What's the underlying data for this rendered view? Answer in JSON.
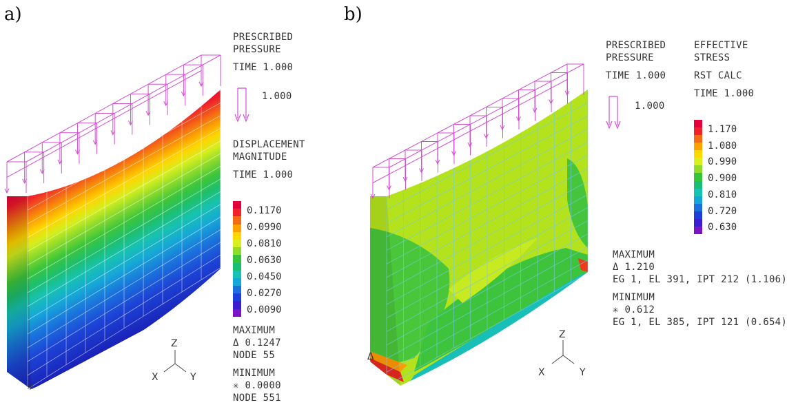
{
  "panel_a": {
    "label": "a)",
    "load": {
      "title_1": "PRESCRIBED",
      "title_2": "PRESSURE",
      "time": "TIME 1.000",
      "scale": "1.000"
    },
    "contour": {
      "title_1": "DISPLACEMENT",
      "title_2": "MAGNITUDE",
      "time": "TIME 1.000"
    },
    "legend": {
      "ticks": [
        "0.1170",
        "0.0990",
        "0.0810",
        "0.0630",
        "0.0450",
        "0.0270",
        "0.0090"
      ],
      "colors": [
        "#e4003a",
        "#f0232a",
        "#f56a15",
        "#ffa200",
        "#ffd800",
        "#d8ef20",
        "#8fdc2a",
        "#36c53a",
        "#1bbf74",
        "#17c3b4",
        "#15a6d8",
        "#1a71dd",
        "#1d3ed8",
        "#3d1dd0",
        "#7a14c4"
      ]
    },
    "maximum": {
      "title": "MAXIMUM",
      "value": "Δ 0.1247",
      "where": "NODE 55"
    },
    "minimum": {
      "title": "MINIMUM",
      "value": "✳ 0.0000",
      "where": "NODE 551"
    },
    "axes": {
      "z": "Z",
      "x": "X",
      "y": "Y"
    },
    "markers": {
      "min": "✳"
    }
  },
  "panel_b": {
    "label": "b)",
    "load": {
      "title_1": "PRESCRIBED",
      "title_2": "PRESSURE",
      "time": "TIME 1.000",
      "scale": "1.000"
    },
    "contour": {
      "title_1": "EFFECTIVE",
      "title_2": "STRESS",
      "calc": "RST CALC",
      "time": "TIME 1.000"
    },
    "legend": {
      "ticks": [
        "1.170",
        "1.080",
        "0.990",
        "0.900",
        "0.810",
        "0.720",
        "0.630"
      ],
      "colors": [
        "#e4003a",
        "#f0232a",
        "#f56a15",
        "#ffa200",
        "#ffd800",
        "#d8ef20",
        "#8fdc2a",
        "#36c53a",
        "#1bbf74",
        "#17c3b4",
        "#15a6d8",
        "#1a71dd",
        "#1d3ed8",
        "#3d1dd0",
        "#7a14c4"
      ]
    },
    "maximum": {
      "title": "MAXIMUM",
      "value": "Δ 1.210",
      "where": "EG 1, EL 391, IPT 212 (1.106)"
    },
    "minimum": {
      "title": "MINIMUM",
      "value": "✳ 0.612",
      "where": "EG 1, EL 385, IPT 121 (0.654)"
    },
    "axes": {
      "z": "Z",
      "x": "X",
      "y": "Y"
    },
    "markers": {
      "max": "Δ"
    }
  }
}
